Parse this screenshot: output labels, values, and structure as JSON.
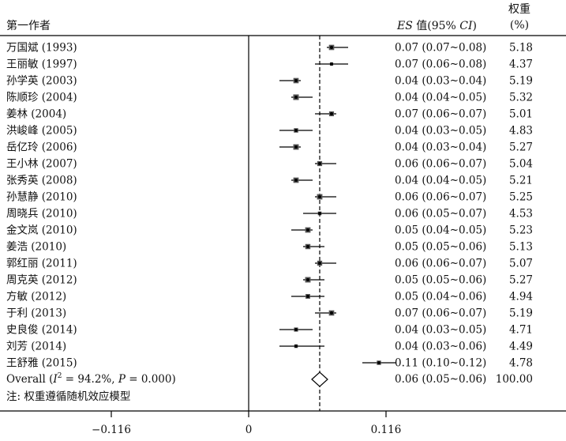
{
  "chart_data": {
    "type": "forest",
    "header": {
      "study_label": "第一作者",
      "es_label_italic": "ES",
      "es_label_mid": " 值(95% ",
      "es_label_ci": "CI",
      "es_label_end": ")",
      "weight_label_line1": "权重",
      "weight_label_line2": "(%)"
    },
    "studies": [
      {
        "name": "万国斌 (1993)",
        "es": 0.07,
        "ci_low": 0.07,
        "ci_high": 0.08,
        "es_text": "0.07 (0.07~0.08)",
        "weight": "5.18"
      },
      {
        "name": "王丽敏 (1997)",
        "es": 0.07,
        "ci_low": 0.06,
        "ci_high": 0.08,
        "es_text": "0.07 (0.06~0.08)",
        "weight": "4.37"
      },
      {
        "name": "孙学英 (2003)",
        "es": 0.04,
        "ci_low": 0.03,
        "ci_high": 0.04,
        "es_text": "0.04 (0.03~0.04)",
        "weight": "5.19"
      },
      {
        "name": "陈顺珍 (2004)",
        "es": 0.04,
        "ci_low": 0.04,
        "ci_high": 0.05,
        "es_text": "0.04 (0.04~0.05)",
        "weight": "5.32"
      },
      {
        "name": "姜林 (2004)",
        "es": 0.07,
        "ci_low": 0.06,
        "ci_high": 0.07,
        "es_text": "0.07 (0.06~0.07)",
        "weight": "5.01"
      },
      {
        "name": "洪峻峰 (2005)",
        "es": 0.04,
        "ci_low": 0.03,
        "ci_high": 0.05,
        "es_text": "0.04 (0.03~0.05)",
        "weight": "4.83"
      },
      {
        "name": "岳亿玲 (2006)",
        "es": 0.04,
        "ci_low": 0.03,
        "ci_high": 0.04,
        "es_text": "0.04 (0.03~0.04)",
        "weight": "5.27"
      },
      {
        "name": "王小林 (2007)",
        "es": 0.06,
        "ci_low": 0.06,
        "ci_high": 0.07,
        "es_text": "0.06 (0.06~0.07)",
        "weight": "5.04"
      },
      {
        "name": "张秀英 (2008)",
        "es": 0.04,
        "ci_low": 0.04,
        "ci_high": 0.05,
        "es_text": "0.04 (0.04~0.05)",
        "weight": "5.21"
      },
      {
        "name": "孙慧静 (2010)",
        "es": 0.06,
        "ci_low": 0.06,
        "ci_high": 0.07,
        "es_text": "0.06 (0.06~0.07)",
        "weight": "5.25"
      },
      {
        "name": "周晓兵 (2010)",
        "es": 0.06,
        "ci_low": 0.05,
        "ci_high": 0.07,
        "es_text": "0.06 (0.05~0.07)",
        "weight": "4.53"
      },
      {
        "name": "金文岚 (2010)",
        "es": 0.05,
        "ci_low": 0.04,
        "ci_high": 0.05,
        "es_text": "0.05 (0.04~0.05)",
        "weight": "5.23"
      },
      {
        "name": "姜浩 (2010)",
        "es": 0.05,
        "ci_low": 0.05,
        "ci_high": 0.06,
        "es_text": "0.05 (0.05~0.06)",
        "weight": "5.13"
      },
      {
        "name": "郭红丽 (2011)",
        "es": 0.06,
        "ci_low": 0.06,
        "ci_high": 0.07,
        "es_text": "0.06 (0.06~0.07)",
        "weight": "5.07"
      },
      {
        "name": "周克英 (2012)",
        "es": 0.05,
        "ci_low": 0.05,
        "ci_high": 0.06,
        "es_text": "0.05 (0.05~0.06)",
        "weight": "5.27"
      },
      {
        "name": "方敏 (2012)",
        "es": 0.05,
        "ci_low": 0.04,
        "ci_high": 0.06,
        "es_text": "0.05 (0.04~0.06)",
        "weight": "4.94"
      },
      {
        "name": "于利 (2013)",
        "es": 0.07,
        "ci_low": 0.06,
        "ci_high": 0.07,
        "es_text": "0.07 (0.06~0.07)",
        "weight": "5.19"
      },
      {
        "name": "史良俊 (2014)",
        "es": 0.04,
        "ci_low": 0.03,
        "ci_high": 0.05,
        "es_text": "0.04 (0.03~0.05)",
        "weight": "4.71"
      },
      {
        "name": "刘芳 (2014)",
        "es": 0.04,
        "ci_low": 0.03,
        "ci_high": 0.06,
        "es_text": "0.04 (0.03~0.06)",
        "weight": "4.49"
      },
      {
        "name": "王舒雅 (2015)",
        "es": 0.11,
        "ci_low": 0.1,
        "ci_high": 0.12,
        "es_text": "0.11 (0.10~0.12)",
        "weight": "4.78"
      }
    ],
    "overall": {
      "name_prefix": "Overall  (",
      "i2_symbol": "I",
      "i2_sup": "2",
      "i2_text": " = 94.2%, ",
      "p_symbol": "P",
      "p_text": " = 0.000)",
      "es": 0.06,
      "ci_low": 0.05,
      "ci_high": 0.06,
      "es_text": "0.06 (0.05~0.06)",
      "weight": "100.00"
    },
    "note": "注: 权重遵循随机效应模型",
    "x_axis": {
      "ticks": [
        -0.116,
        0,
        0.116
      ],
      "tick_labels": [
        "−0.116",
        "0",
        "0.116"
      ],
      "range": [
        -0.116,
        0.116
      ]
    },
    "null_line": 0,
    "overall_line": 0.06
  }
}
